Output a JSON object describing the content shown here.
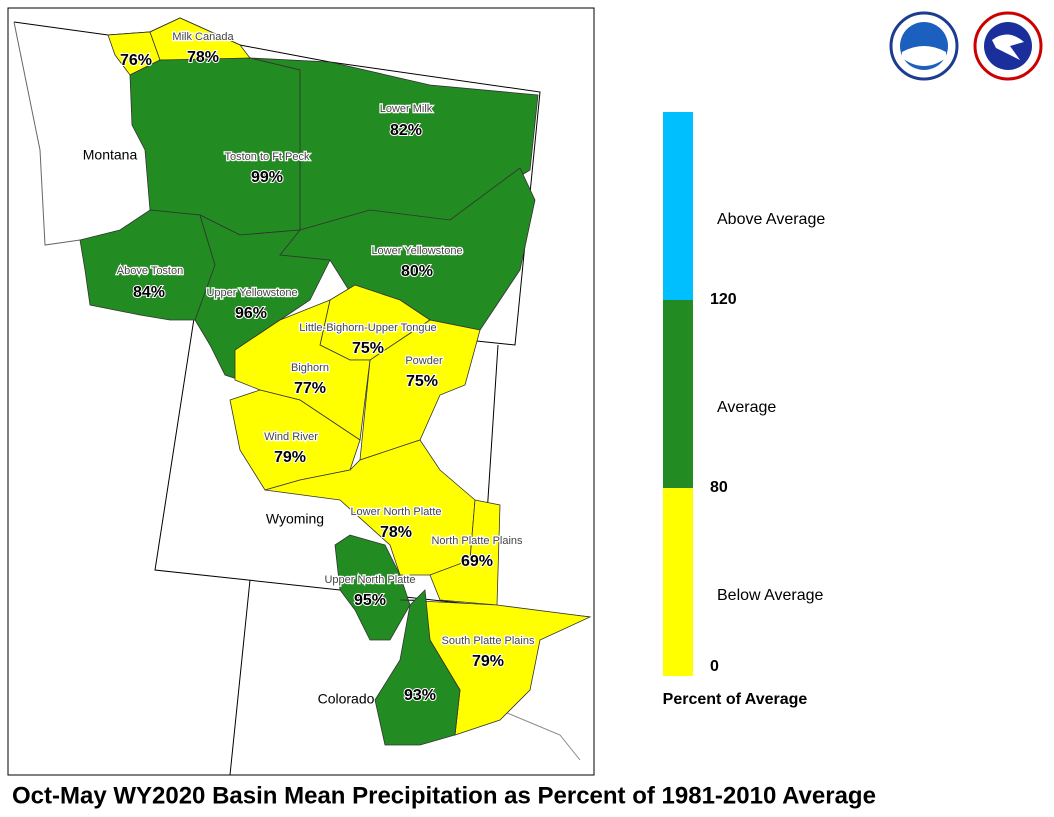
{
  "title": "Oct-May WY2020 Basin Mean Precipitation as Percent of 1981-2010 Average",
  "states": [
    "Montana",
    "Wyoming",
    "Colorado"
  ],
  "basins": [
    {
      "name": null,
      "value": 76,
      "value_label": "76%"
    },
    {
      "name": "Milk Canada",
      "value": 78,
      "value_label": "78%"
    },
    {
      "name": "Lower Milk",
      "value": 82,
      "value_label": "82%"
    },
    {
      "name": "Toston to Ft Peck",
      "value": 99,
      "value_label": "99%"
    },
    {
      "name": "Above Toston",
      "value": 84,
      "value_label": "84%"
    },
    {
      "name": "Upper Yellowstone",
      "value": 96,
      "value_label": "96%"
    },
    {
      "name": "Lower Yellowstone",
      "value": 80,
      "value_label": "80%"
    },
    {
      "name": "Little-Bighorn-Upper Tongue",
      "value": 75,
      "value_label": "75%"
    },
    {
      "name": "Powder",
      "value": 75,
      "value_label": "75%"
    },
    {
      "name": "Bighorn",
      "value": 77,
      "value_label": "77%"
    },
    {
      "name": "Wind River",
      "value": 79,
      "value_label": "79%"
    },
    {
      "name": "Lower North Platte",
      "value": 78,
      "value_label": "78%"
    },
    {
      "name": "North Platte Plains",
      "value": 69,
      "value_label": "69%"
    },
    {
      "name": "Upper North Platte",
      "value": 95,
      "value_label": "95%"
    },
    {
      "name": "South Platte Plains",
      "value": 79,
      "value_label": "79%"
    },
    {
      "name": null,
      "value": 93,
      "value_label": "93%"
    }
  ],
  "legend": {
    "title": "Percent of Average",
    "breaks": [
      0,
      80,
      120
    ],
    "classes": [
      {
        "label": "Below Average",
        "color": "#ffff00"
      },
      {
        "label": "Average",
        "color": "#228b22"
      },
      {
        "label": "Above Average",
        "color": "#00bfff"
      }
    ]
  }
}
